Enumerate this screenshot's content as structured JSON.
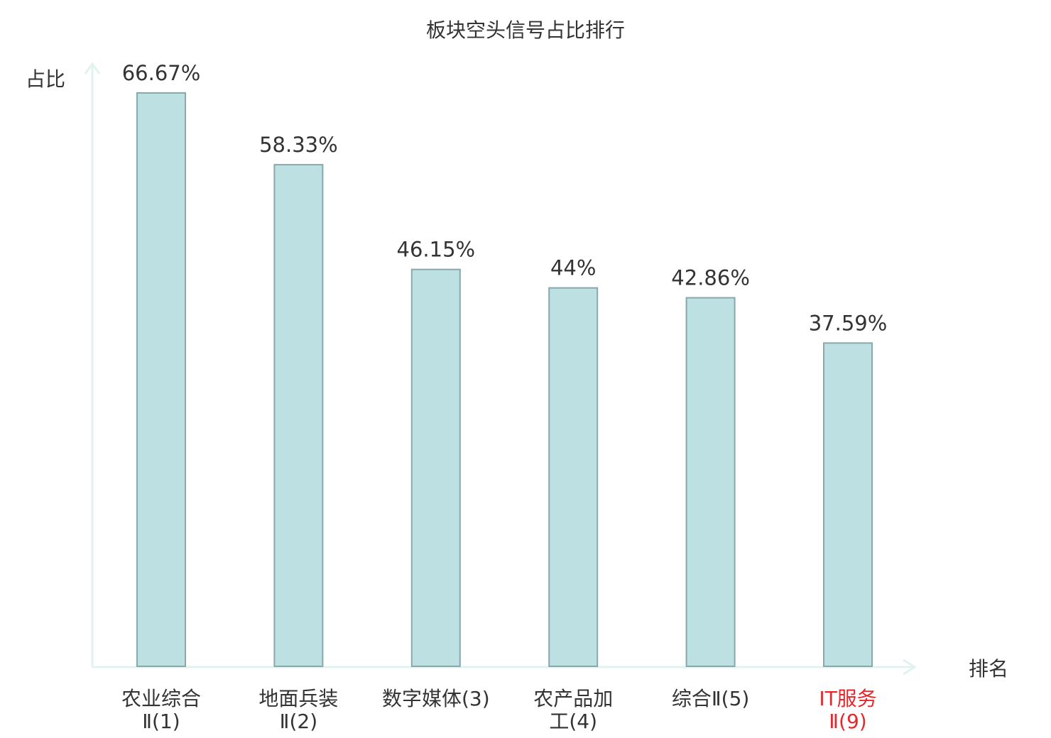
{
  "chart_data": {
    "type": "bar",
    "title": "板块空头信号占比排行",
    "ylabel": "占比",
    "xlabel": "排名",
    "ylim": [
      0,
      66.67
    ],
    "grid": false,
    "legend": "none",
    "categories": [
      {
        "line1": "农业综合",
        "line2": "Ⅱ(1)"
      },
      {
        "line1": "地面兵装",
        "line2": "Ⅱ(2)"
      },
      {
        "line1": "数字媒体(3)",
        "line2": ""
      },
      {
        "line1": "农产品加",
        "line2": "工(4)"
      },
      {
        "line1": "综合Ⅱ(5)",
        "line2": ""
      },
      {
        "line1": "IT服务",
        "line2": "Ⅱ(9)"
      }
    ],
    "values": [
      66.67,
      58.33,
      46.15,
      44,
      42.86,
      37.59
    ],
    "value_labels": [
      "66.67%",
      "58.33%",
      "46.15%",
      "44%",
      "42.86%",
      "37.59%"
    ],
    "highlight_index": 5,
    "colors": {
      "bar_fill": "#bde0e3",
      "bar_stroke": "#88a8ab",
      "axis": "#e0f3f1",
      "text": "#333333",
      "highlight_text": "#e8262b"
    }
  }
}
